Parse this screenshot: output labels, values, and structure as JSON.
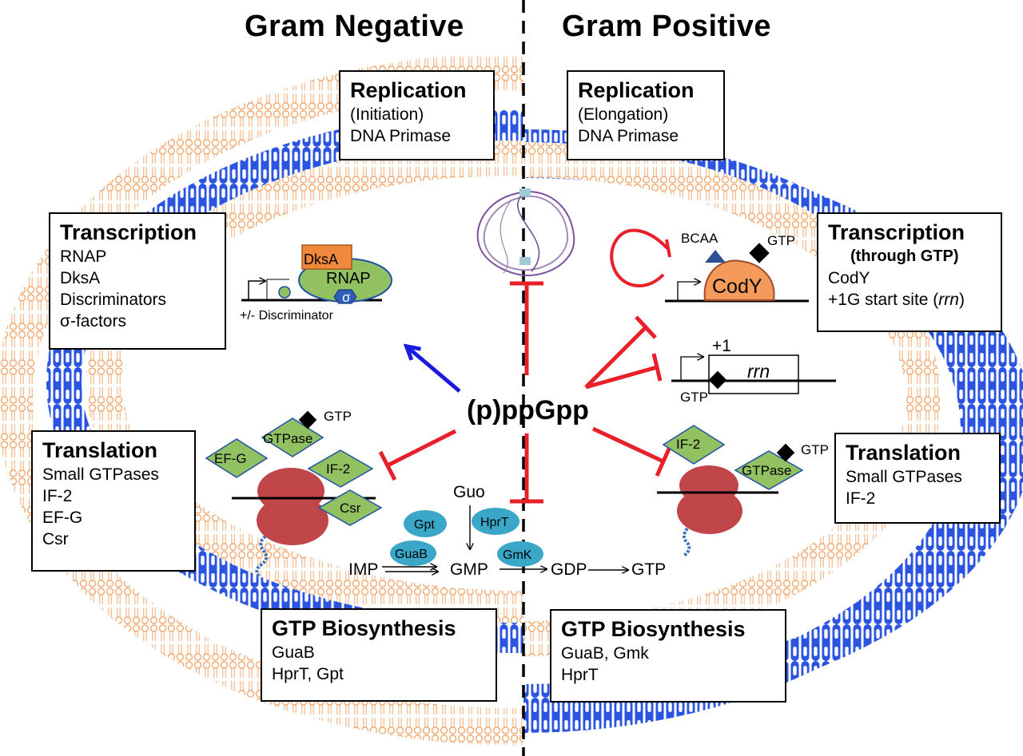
{
  "headings": {
    "left": "Gram Negative",
    "right": "Gram Positive"
  },
  "boxes": {
    "rep_neg": {
      "title": "Replication",
      "lines": [
        "(Initiation)",
        "DNA Primase"
      ]
    },
    "rep_pos": {
      "title": "Replication",
      "lines": [
        "(Elongation)",
        "DNA Primase"
      ]
    },
    "trans_neg": {
      "title": "Transcription",
      "lines": [
        "RNAP",
        "DksA",
        "Discriminators",
        "σ-factors"
      ]
    },
    "trans_pos": {
      "title": "Transcription",
      "subtitle": "(through GTP)",
      "lines": [
        "CodY"
      ],
      "rrn_prefix": "+1G start site (",
      "rrn_italic": "rrn",
      "rrn_suffix": ")"
    },
    "transl_neg": {
      "title": "Translation",
      "lines": [
        "Small GTPases",
        "IF-2",
        "EF-G",
        "Csr"
      ]
    },
    "transl_pos": {
      "title": "Translation",
      "lines": [
        "Small GTPases",
        "IF-2"
      ]
    },
    "gtp_neg": {
      "title": "GTP Biosynthesis",
      "lines": [
        "GuaB",
        "HprT, Gpt"
      ]
    },
    "gtp_pos": {
      "title": "GTP Biosynthesis",
      "lines": [
        "GuaB, Gmk",
        "HprT"
      ]
    }
  },
  "labels": {
    "center": "(p)ppGpp",
    "dksa": "DksA",
    "rnap": "RNAP",
    "sigma": "σ",
    "discriminator": "+/- Discriminator",
    "bcaa": "BCAA",
    "gtp": "GTP",
    "cody": "CodY",
    "plus1": "+1",
    "rrn": "rrn",
    "gtpase": "GTPase",
    "efg": "EF-G",
    "if2": "IF-2",
    "csr": "Csr",
    "guo": "Guo",
    "gpt": "Gpt",
    "hprt": "HprT",
    "guab": "GuaB",
    "gmk": "GmK",
    "imp": "IMP",
    "gmp": "GMP",
    "gdp": "GDP"
  },
  "colors": {
    "inhibit": "#e8202a",
    "activate": "#1a1ae0",
    "membrane_blue": "#2b55e0",
    "lipid_orange": "#f2a970",
    "protein_green": "#92c162",
    "enzyme_teal": "#3aa6c8",
    "cody_orange": "#f49a5a",
    "ribosome": "#c1464a"
  }
}
